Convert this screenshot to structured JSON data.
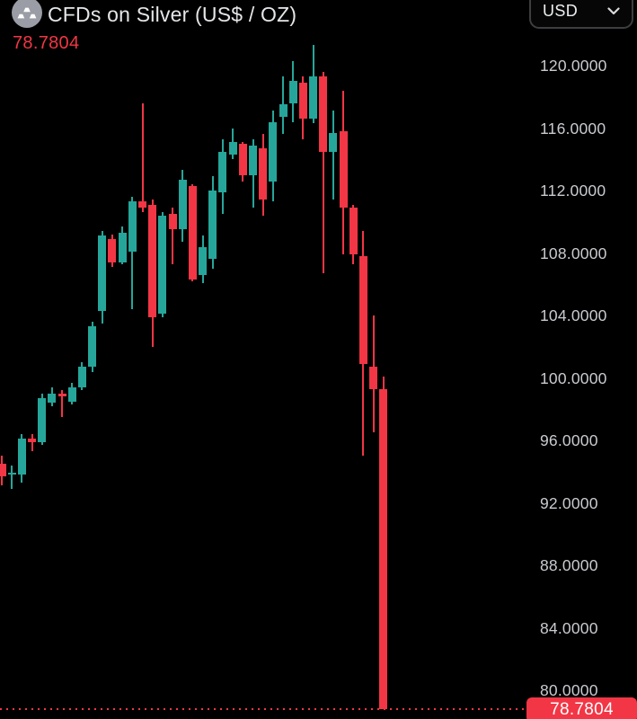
{
  "header": {
    "symbol_title": "CFDs on Silver (US$ / OZ)",
    "current_price": "78.7804"
  },
  "currency_selector": {
    "value": "USD"
  },
  "price_axis": {
    "labels": [
      {
        "price": 120,
        "label": "120.0000"
      },
      {
        "price": 116,
        "label": "116.0000"
      },
      {
        "price": 112,
        "label": "112.0000"
      },
      {
        "price": 108,
        "label": "108.0000"
      },
      {
        "price": 104,
        "label": "104.0000"
      },
      {
        "price": 100,
        "label": "100.0000"
      },
      {
        "price": 96,
        "label": "96.0000"
      },
      {
        "price": 92,
        "label": "92.0000"
      },
      {
        "price": 88,
        "label": "88.0000"
      },
      {
        "price": 84,
        "label": "84.0000"
      },
      {
        "price": 80,
        "label": "80.0000"
      }
    ],
    "last_price_badge": "78.7804"
  },
  "chart_data": {
    "type": "candlestick",
    "title": "CFDs on Silver (US$ / OZ)",
    "currency": "USD",
    "last_price": 78.7804,
    "visible_price_range": [
      78.2,
      124.2
    ],
    "grid": false,
    "legend_position": "none",
    "up_color": "#26a69a",
    "down_color": "#f23645",
    "candles": [
      {
        "o": 94.5,
        "h": 95.0,
        "l": 93.1,
        "c": 93.7
      },
      {
        "o": 93.8,
        "h": 94.4,
        "l": 92.9,
        "c": 93.9
      },
      {
        "o": 93.8,
        "h": 96.4,
        "l": 93.3,
        "c": 96.1
      },
      {
        "o": 96.1,
        "h": 96.4,
        "l": 95.3,
        "c": 95.9
      },
      {
        "o": 95.9,
        "h": 99.0,
        "l": 95.7,
        "c": 98.7
      },
      {
        "o": 98.4,
        "h": 99.4,
        "l": 98.2,
        "c": 99.0
      },
      {
        "o": 99.0,
        "h": 99.2,
        "l": 97.5,
        "c": 98.8
      },
      {
        "o": 98.5,
        "h": 99.7,
        "l": 98.3,
        "c": 99.4
      },
      {
        "o": 99.4,
        "h": 101.0,
        "l": 99.2,
        "c": 100.7
      },
      {
        "o": 100.7,
        "h": 103.6,
        "l": 100.4,
        "c": 103.3
      },
      {
        "o": 104.3,
        "h": 109.4,
        "l": 103.5,
        "c": 109.1
      },
      {
        "o": 108.9,
        "h": 109.2,
        "l": 107.1,
        "c": 107.4
      },
      {
        "o": 107.4,
        "h": 109.7,
        "l": 107.3,
        "c": 109.3
      },
      {
        "o": 108.1,
        "h": 111.6,
        "l": 104.4,
        "c": 111.3
      },
      {
        "o": 111.3,
        "h": 117.6,
        "l": 110.6,
        "c": 110.9
      },
      {
        "o": 111.1,
        "h": 111.4,
        "l": 102.0,
        "c": 103.9
      },
      {
        "o": 104.1,
        "h": 110.6,
        "l": 103.9,
        "c": 110.4
      },
      {
        "o": 110.5,
        "h": 110.9,
        "l": 107.3,
        "c": 109.5
      },
      {
        "o": 109.5,
        "h": 113.3,
        "l": 108.7,
        "c": 112.7
      },
      {
        "o": 112.3,
        "h": 112.4,
        "l": 106.2,
        "c": 106.3
      },
      {
        "o": 106.6,
        "h": 109.1,
        "l": 106.1,
        "c": 108.4
      },
      {
        "o": 107.6,
        "h": 112.9,
        "l": 107.0,
        "c": 112.0
      },
      {
        "o": 111.9,
        "h": 115.3,
        "l": 110.5,
        "c": 114.5
      },
      {
        "o": 114.3,
        "h": 116.0,
        "l": 114.0,
        "c": 115.1
      },
      {
        "o": 115.0,
        "h": 115.1,
        "l": 112.6,
        "c": 113.0
      },
      {
        "o": 113.0,
        "h": 115.3,
        "l": 110.9,
        "c": 114.9
      },
      {
        "o": 114.7,
        "h": 115.6,
        "l": 110.4,
        "c": 111.4
      },
      {
        "o": 112.6,
        "h": 117.1,
        "l": 111.3,
        "c": 116.4
      },
      {
        "o": 116.7,
        "h": 119.3,
        "l": 115.6,
        "c": 117.5
      },
      {
        "o": 117.6,
        "h": 120.3,
        "l": 116.4,
        "c": 119.0
      },
      {
        "o": 118.9,
        "h": 119.3,
        "l": 115.3,
        "c": 116.6
      },
      {
        "o": 116.6,
        "h": 121.3,
        "l": 116.3,
        "c": 119.3
      },
      {
        "o": 119.3,
        "h": 119.6,
        "l": 106.7,
        "c": 114.5
      },
      {
        "o": 114.5,
        "h": 117.1,
        "l": 111.4,
        "c": 115.7
      },
      {
        "o": 115.8,
        "h": 118.4,
        "l": 107.9,
        "c": 110.9
      },
      {
        "o": 110.9,
        "h": 111.1,
        "l": 107.3,
        "c": 107.9
      },
      {
        "o": 107.8,
        "h": 109.4,
        "l": 95.0,
        "c": 100.9
      },
      {
        "o": 100.7,
        "h": 104.0,
        "l": 96.5,
        "c": 99.3
      },
      {
        "o": 99.3,
        "h": 100.1,
        "l": 78.7804,
        "c": 78.7804
      }
    ]
  }
}
